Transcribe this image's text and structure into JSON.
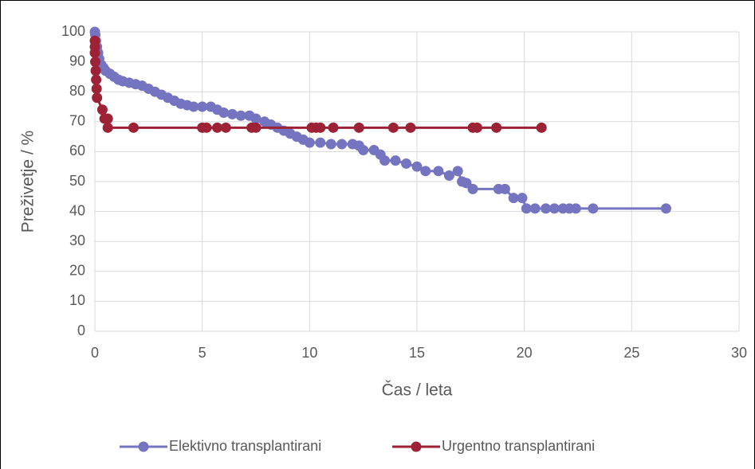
{
  "chart_data": {
    "type": "line",
    "x_label": "Čas / leta",
    "y_label": "Preživetje / %",
    "xlim": [
      0,
      30
    ],
    "xticks": [
      0,
      5,
      10,
      15,
      20,
      25,
      30
    ],
    "ylim": [
      0,
      100
    ],
    "yticks": [
      0,
      10,
      20,
      30,
      40,
      50,
      60,
      70,
      80,
      90,
      100
    ],
    "grid": true,
    "legend": "bottom",
    "series": [
      {
        "name": "Elektivno transplantirani",
        "color": "#7474c1",
        "x": [
          0,
          0.02,
          0.05,
          0.1,
          0.15,
          0.2,
          0.3,
          0.4,
          0.5,
          0.7,
          0.9,
          1.1,
          1.3,
          1.6,
          1.9,
          2.2,
          2.5,
          2.8,
          3.1,
          3.4,
          3.7,
          4,
          4.3,
          4.6,
          5,
          5.4,
          5.7,
          6,
          6.4,
          6.8,
          7.2,
          7.5,
          7.9,
          8.2,
          8.5,
          8.8,
          9.1,
          9.4,
          9.7,
          10,
          10.5,
          11,
          11.5,
          12,
          12.3,
          12.5,
          13,
          13.3,
          13.5,
          14,
          14.5,
          15,
          15.4,
          16,
          16.5,
          16.9,
          17.1,
          17.3,
          17.6,
          18.8,
          19.1,
          19.5,
          19.9,
          20.1,
          20.5,
          21,
          21.4,
          21.8,
          22.1,
          22.4,
          23.2,
          26.6
        ],
        "values": [
          100,
          99,
          97,
          95,
          93,
          91,
          89,
          88,
          87,
          86,
          85,
          84,
          83.5,
          83,
          82.5,
          82,
          81,
          80,
          79,
          78,
          77,
          76,
          75.5,
          75,
          75,
          75,
          74,
          73,
          72.5,
          72,
          72,
          71,
          70,
          69,
          68,
          67,
          66,
          65,
          64,
          63,
          63,
          62.5,
          62.5,
          62.5,
          62,
          60.5,
          60.5,
          59,
          57,
          57,
          56,
          55,
          53.5,
          53.5,
          52,
          53.5,
          50,
          49.5,
          47.5,
          47.5,
          47.5,
          44.5,
          44.5,
          41,
          41,
          41,
          41,
          41,
          41,
          41,
          41,
          41
        ]
      },
      {
        "name": "Urgentno transplantirani",
        "color": "#9e2235",
        "x": [
          0,
          0,
          0,
          0.02,
          0.04,
          0.06,
          0.08,
          0.1,
          0.35,
          0.45,
          0.6,
          0.6,
          1.8,
          5,
          5.2,
          5.7,
          6.1,
          7.3,
          7.5,
          10.1,
          10.3,
          10.5,
          11.1,
          12.3,
          13.9,
          14.7,
          17.6,
          17.8,
          18.7,
          20.8
        ],
        "values": [
          97,
          95,
          93,
          90,
          87,
          84,
          81,
          78,
          74,
          71,
          71,
          68,
          68,
          68,
          68,
          68,
          68,
          68,
          68,
          68,
          68,
          68,
          68,
          68,
          68,
          68,
          68,
          68,
          68,
          68
        ]
      }
    ]
  }
}
